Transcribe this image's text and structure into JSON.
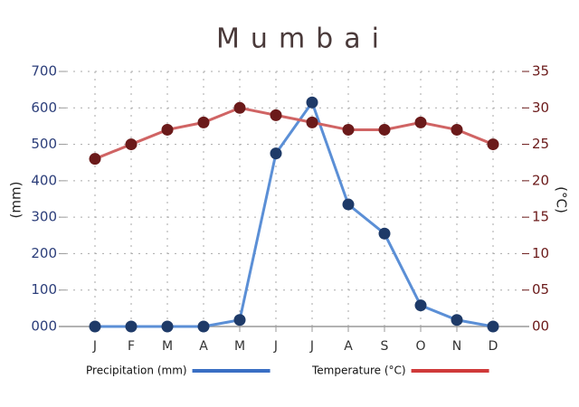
{
  "chart_data": {
    "type": "line",
    "title": "Mumbai",
    "categories": [
      "J",
      "F",
      "M",
      "A",
      "M",
      "J",
      "J",
      "A",
      "S",
      "O",
      "N",
      "D"
    ],
    "series": [
      {
        "name": "Precipitation (mm)",
        "color": "#5b8fd6",
        "marker_color": "#1e3a68",
        "legend_color": "#3a6fc4",
        "values": [
          0,
          0,
          0,
          0,
          18,
          475,
          615,
          335,
          255,
          58,
          18,
          0
        ]
      },
      {
        "name": "Temperature (°C)",
        "color": "#d06464",
        "marker_color": "#6b1a1a",
        "legend_color": "#d03a3a",
        "axis": "y2",
        "values": [
          23,
          25,
          27,
          28,
          30,
          29,
          28,
          27,
          27,
          28,
          27,
          25
        ]
      }
    ],
    "ylabel": "(mm)",
    "y2label": "(°C)",
    "ylim": [
      0,
      700
    ],
    "yticks": [
      {
        "value": 0,
        "label": "000"
      },
      100,
      200,
      300,
      400,
      500,
      600,
      700
    ],
    "y2lim": [
      0,
      35
    ],
    "y2ticks": [
      {
        "value": 0,
        "label": "00"
      },
      {
        "value": 5,
        "label": "05"
      },
      10,
      15,
      20,
      25,
      30,
      35
    ],
    "grid": true
  }
}
